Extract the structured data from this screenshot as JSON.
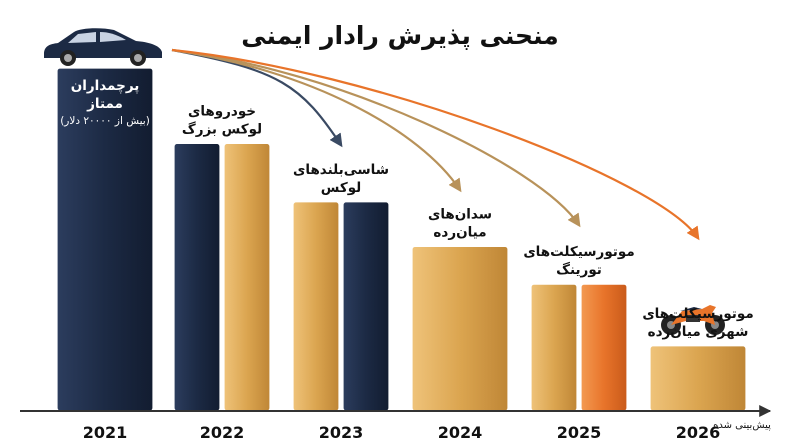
{
  "chart_data": {
    "type": "bar",
    "title": "منحنی پذیرش رادار ایمنی",
    "xlabel": "پیش‌بینی شده",
    "categories": [
      "2021",
      "2022",
      "2023",
      "2024",
      "2025",
      "2026"
    ],
    "segments": [
      {
        "year": "2021",
        "label_lines": [
          "پرچمداران",
          "ممتاز"
        ],
        "note": "(بیش از ۲۰۰۰۰ دلار)",
        "value": 100,
        "bars": [
          "navy"
        ]
      },
      {
        "year": "2022",
        "label_lines": [
          "خودروهای",
          "لوکس بزرگ"
        ],
        "value": 78,
        "bars": [
          "navy",
          "gold"
        ]
      },
      {
        "year": "2023",
        "label_lines": [
          "شاسی‌بلندهای",
          "لوکس"
        ],
        "value": 61,
        "bars": [
          "gold",
          "navy"
        ]
      },
      {
        "year": "2024",
        "label_lines": [
          "سدان‌های",
          "میان‌رده"
        ],
        "value": 48,
        "bars": [
          "gold"
        ]
      },
      {
        "year": "2025",
        "label_lines": [
          "موتورسیکلت‌های",
          "تورینگ"
        ],
        "value": 37,
        "bars": [
          "gold",
          "orange"
        ]
      },
      {
        "year": "2026",
        "label_lines": [
          "موتورسیکلت‌های",
          "شهری میان‌رده"
        ],
        "value": 19,
        "bars": [
          "gold"
        ]
      }
    ],
    "ylim": [
      0,
      100
    ],
    "colors": {
      "navy": "#1c2a44",
      "gold": "#dba550",
      "orange": "#e8742a",
      "axis": "#333333"
    },
    "icons": {
      "top": "car-icon",
      "bottom": "motorcycle-icon"
    }
  }
}
